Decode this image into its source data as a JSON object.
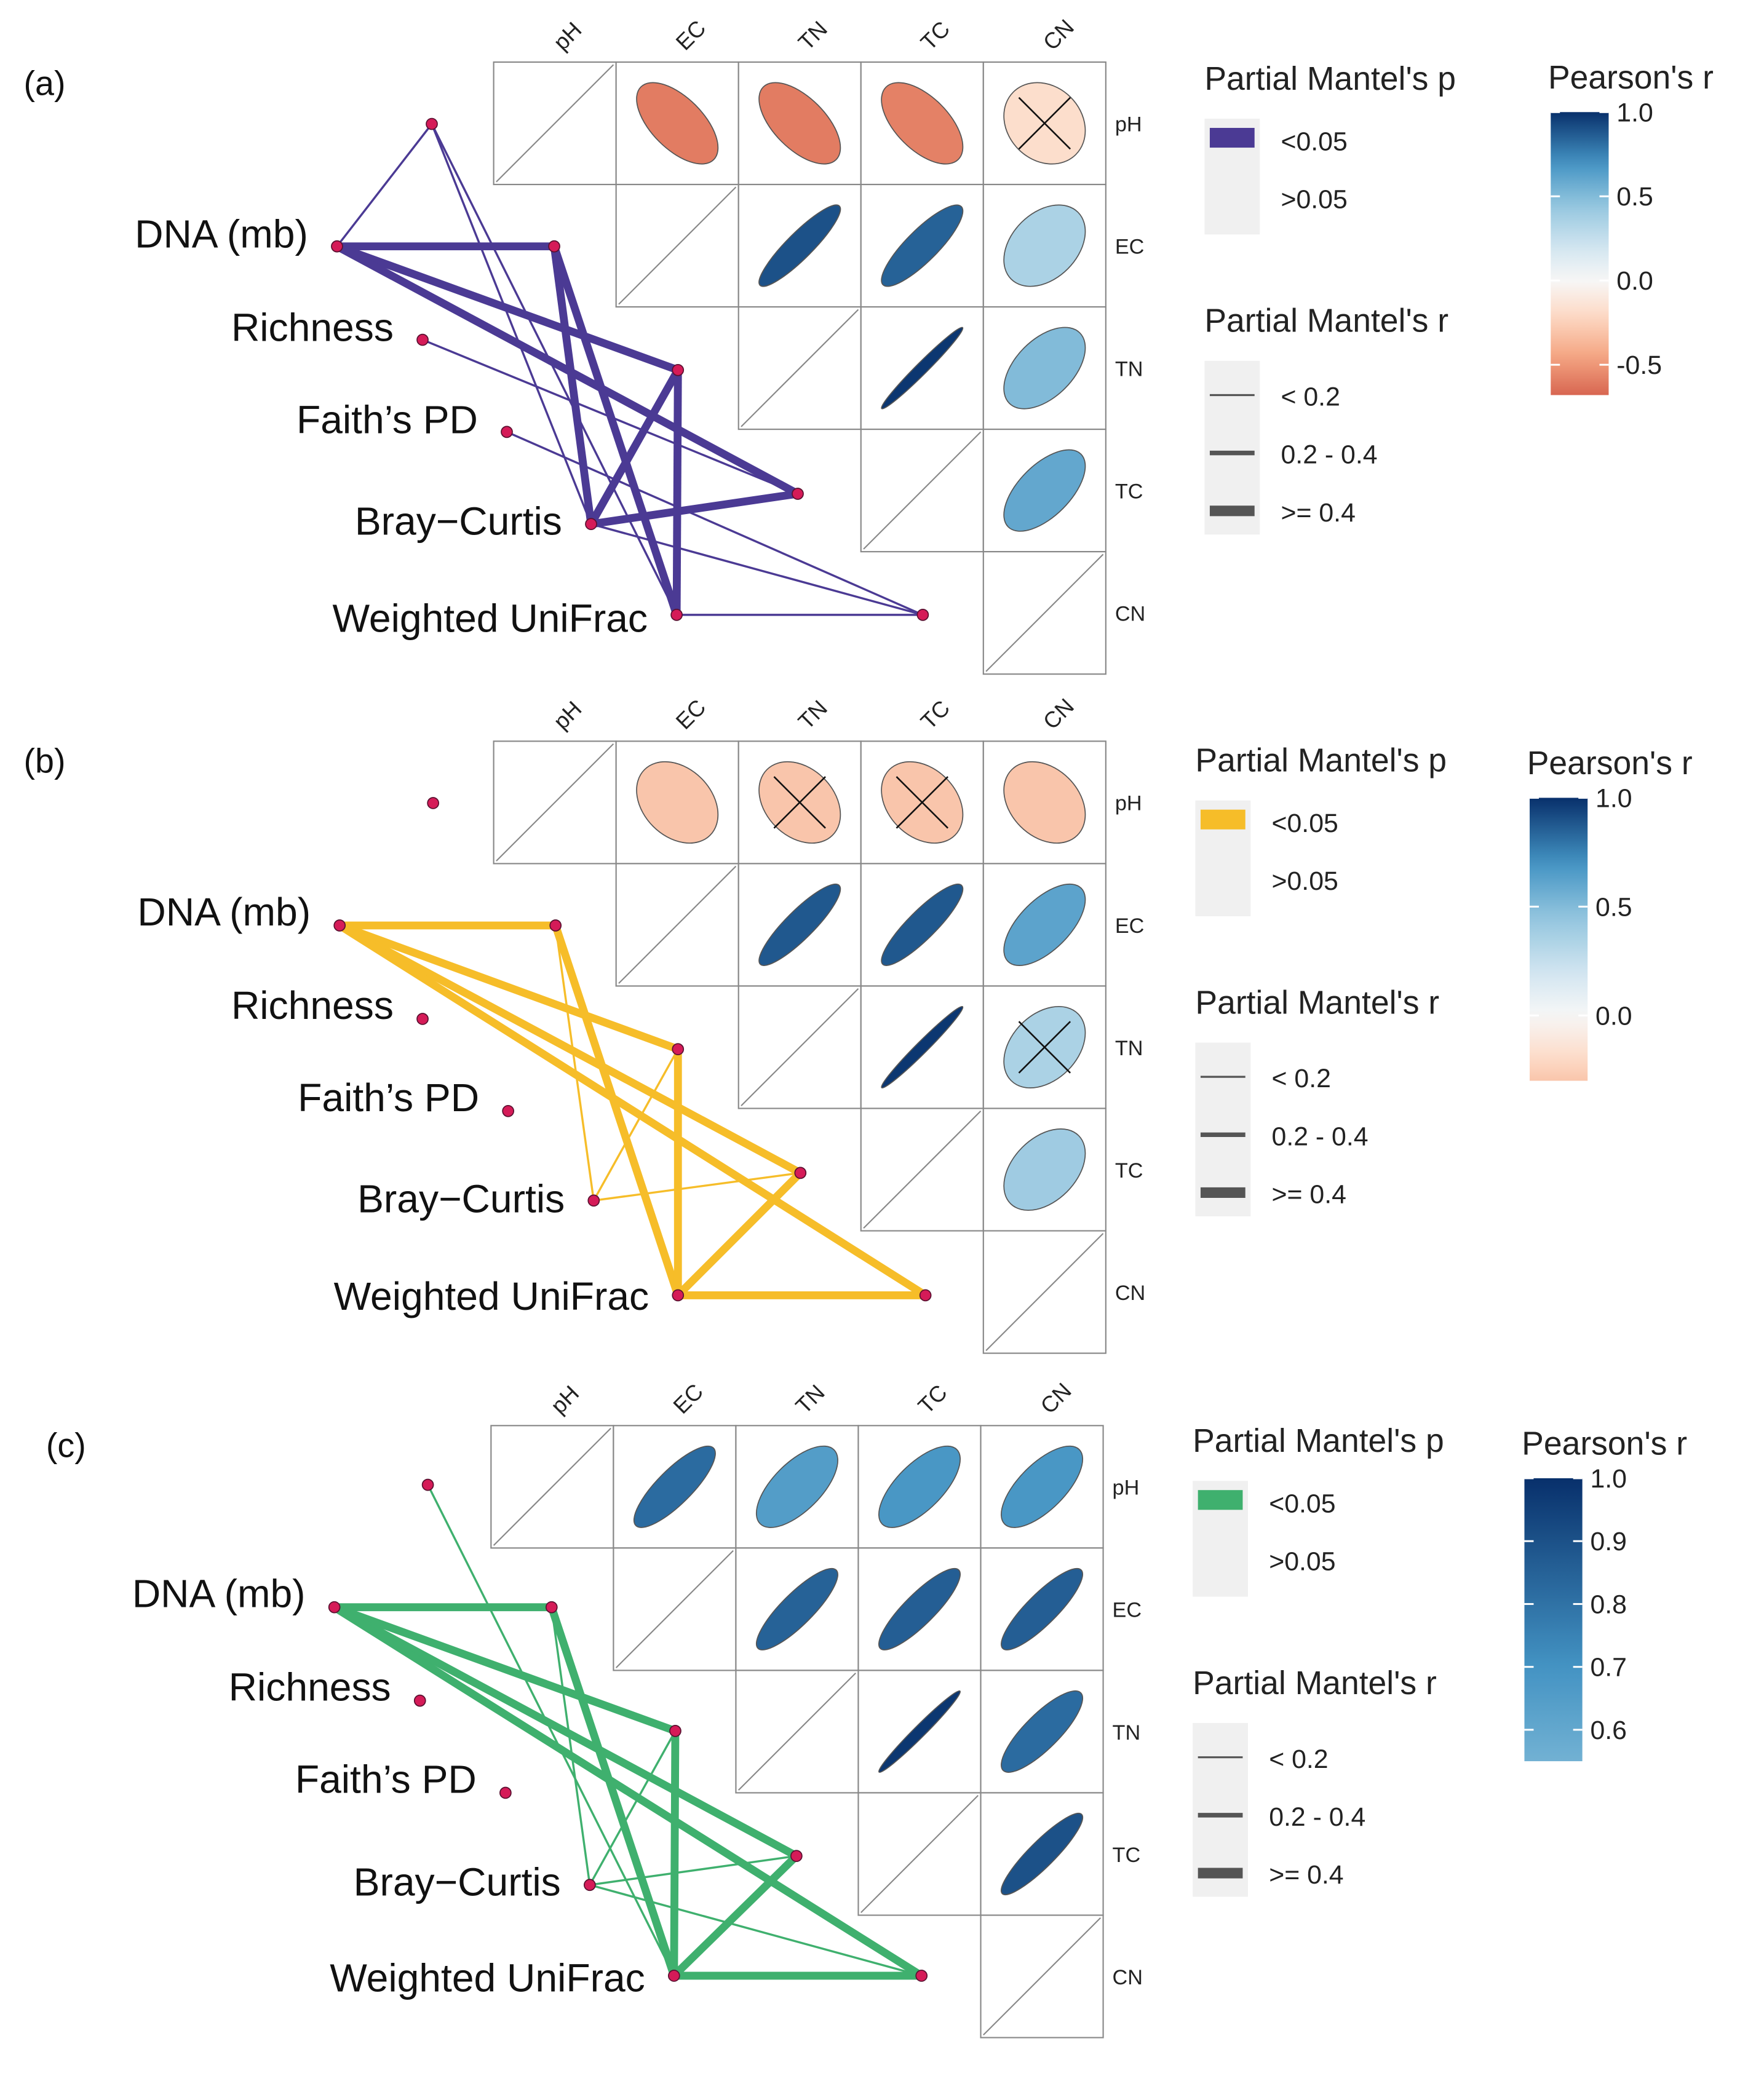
{
  "colors": {
    "edge_a": "#4b3a94",
    "edge_b": "#f6bd29",
    "edge_c": "#3fb06e",
    "node": "#d51b58",
    "node_stroke": "#5a1030",
    "grid": "#888888",
    "legend_bg": "#f0f0f0",
    "legend_line": "#555555"
  },
  "chart_data": [
    {
      "type": "heatmap",
      "panel_label": "(a)",
      "variables": [
        "pH",
        "EC",
        "TN",
        "TC",
        "CN"
      ],
      "row_labels": [
        "DNA (mb)",
        "Richness",
        "Faith’s PD",
        "Bray−Curtis",
        "Weighted UniFrac"
      ],
      "edge_color": "#4b3a94",
      "correlations": [
        {
          "row": "pH",
          "col": "EC",
          "r": -0.6,
          "sig": true
        },
        {
          "row": "pH",
          "col": "TN",
          "r": -0.6,
          "sig": true
        },
        {
          "row": "pH",
          "col": "TC",
          "r": -0.58,
          "sig": true
        },
        {
          "row": "pH",
          "col": "CN",
          "r": -0.18,
          "sig": false
        },
        {
          "row": "EC",
          "col": "TN",
          "r": 0.9,
          "sig": true
        },
        {
          "row": "EC",
          "col": "TC",
          "r": 0.85,
          "sig": true
        },
        {
          "row": "EC",
          "col": "CN",
          "r": 0.35,
          "sig": true
        },
        {
          "row": "TN",
          "col": "TC",
          "r": 0.98,
          "sig": true
        },
        {
          "row": "TN",
          "col": "CN",
          "r": 0.5,
          "sig": true
        },
        {
          "row": "TC",
          "col": "CN",
          "r": 0.6,
          "sig": true
        }
      ],
      "mantel_edges": [
        {
          "from": "pH",
          "to": "DNA (mb)",
          "r_class": "< 0.2",
          "p_class": "<0.05"
        },
        {
          "from": "pH",
          "to": "Bray−Curtis",
          "r_class": "< 0.2",
          "p_class": "<0.05"
        },
        {
          "from": "pH",
          "to": "Weighted UniFrac",
          "r_class": "< 0.2",
          "p_class": "<0.05"
        },
        {
          "from": "EC",
          "to": "DNA (mb)",
          "r_class": ">= 0.4",
          "p_class": "<0.05"
        },
        {
          "from": "EC",
          "to": "Bray−Curtis",
          "r_class": ">= 0.4",
          "p_class": "<0.05"
        },
        {
          "from": "EC",
          "to": "Weighted UniFrac",
          "r_class": ">= 0.4",
          "p_class": "<0.05"
        },
        {
          "from": "TN",
          "to": "DNA (mb)",
          "r_class": ">= 0.4",
          "p_class": "<0.05"
        },
        {
          "from": "TN",
          "to": "Bray−Curtis",
          "r_class": ">= 0.4",
          "p_class": "<0.05"
        },
        {
          "from": "TN",
          "to": "Weighted UniFrac",
          "r_class": ">= 0.4",
          "p_class": "<0.05"
        },
        {
          "from": "TC",
          "to": "DNA (mb)",
          "r_class": ">= 0.4",
          "p_class": "<0.05"
        },
        {
          "from": "TC",
          "to": "Bray−Curtis",
          "r_class": ">= 0.4",
          "p_class": "<0.05"
        },
        {
          "from": "TC",
          "to": "Richness",
          "r_class": "< 0.2",
          "p_class": "<0.05"
        },
        {
          "from": "CN",
          "to": "Faith’s PD",
          "r_class": "< 0.2",
          "p_class": "<0.05"
        },
        {
          "from": "CN",
          "to": "Bray−Curtis",
          "r_class": "< 0.2",
          "p_class": "<0.05"
        },
        {
          "from": "CN",
          "to": "Weighted UniFrac",
          "r_class": "< 0.2",
          "p_class": "<0.05"
        }
      ],
      "legend_p": {
        "title": "Partial Mantel's p",
        "items": [
          "<0.05",
          ">0.05"
        ]
      },
      "legend_r": {
        "title": "Partial Mantel's r",
        "items": [
          "< 0.2",
          "0.2 - 0.4",
          ">= 0.4"
        ]
      },
      "colorbar": {
        "title": "Pearson's r",
        "ticks": [
          "1.0",
          "0.5",
          "0.0",
          "-0.5"
        ],
        "range": [
          -0.68,
          1.0
        ]
      }
    },
    {
      "type": "heatmap",
      "panel_label": "(b)",
      "variables": [
        "pH",
        "EC",
        "TN",
        "TC",
        "CN"
      ],
      "row_labels": [
        "DNA (mb)",
        "Richness",
        "Faith’s PD",
        "Bray−Curtis",
        "Weighted UniFrac"
      ],
      "edge_color": "#f6bd29",
      "correlations": [
        {
          "row": "pH",
          "col": "EC",
          "r": -0.3,
          "sig": true
        },
        {
          "row": "pH",
          "col": "TN",
          "r": -0.3,
          "sig": false
        },
        {
          "row": "pH",
          "col": "TC",
          "r": -0.3,
          "sig": false
        },
        {
          "row": "pH",
          "col": "CN",
          "r": -0.3,
          "sig": true
        },
        {
          "row": "EC",
          "col": "TN",
          "r": 0.88,
          "sig": true
        },
        {
          "row": "EC",
          "col": "TC",
          "r": 0.88,
          "sig": true
        },
        {
          "row": "EC",
          "col": "CN",
          "r": 0.62,
          "sig": true
        },
        {
          "row": "TN",
          "col": "TC",
          "r": 0.98,
          "sig": true
        },
        {
          "row": "TN",
          "col": "CN",
          "r": 0.35,
          "sig": false
        },
        {
          "row": "TC",
          "col": "CN",
          "r": 0.4,
          "sig": true
        }
      ],
      "mantel_edges": [
        {
          "from": "EC",
          "to": "DNA (mb)",
          "r_class": ">= 0.4",
          "p_class": "<0.05"
        },
        {
          "from": "EC",
          "to": "Bray−Curtis",
          "r_class": "< 0.2",
          "p_class": "<0.05"
        },
        {
          "from": "EC",
          "to": "Weighted UniFrac",
          "r_class": ">= 0.4",
          "p_class": "<0.05"
        },
        {
          "from": "TN",
          "to": "DNA (mb)",
          "r_class": ">= 0.4",
          "p_class": "<0.05"
        },
        {
          "from": "TN",
          "to": "Bray−Curtis",
          "r_class": "< 0.2",
          "p_class": "<0.05"
        },
        {
          "from": "TN",
          "to": "Weighted UniFrac",
          "r_class": ">= 0.4",
          "p_class": "<0.05"
        },
        {
          "from": "TC",
          "to": "DNA (mb)",
          "r_class": ">= 0.4",
          "p_class": "<0.05"
        },
        {
          "from": "TC",
          "to": "Bray−Curtis",
          "r_class": "< 0.2",
          "p_class": "<0.05"
        },
        {
          "from": "TC",
          "to": "Weighted UniFrac",
          "r_class": ">= 0.4",
          "p_class": "<0.05"
        },
        {
          "from": "CN",
          "to": "DNA (mb)",
          "r_class": ">= 0.4",
          "p_class": "<0.05"
        },
        {
          "from": "CN",
          "to": "Weighted UniFrac",
          "r_class": ">= 0.4",
          "p_class": "<0.05"
        }
      ],
      "legend_p": {
        "title": "Partial Mantel's p",
        "items": [
          "<0.05",
          ">0.05"
        ]
      },
      "legend_r": {
        "title": "Partial Mantel's r",
        "items": [
          "< 0.2",
          "0.2 - 0.4",
          ">= 0.4"
        ]
      },
      "colorbar": {
        "title": "Pearson's r",
        "ticks": [
          "1.0",
          "0.5",
          "0.0"
        ],
        "range": [
          -0.3,
          1.0
        ]
      }
    },
    {
      "type": "heatmap",
      "panel_label": "(c)",
      "variables": [
        "pH",
        "EC",
        "TN",
        "TC",
        "CN"
      ],
      "row_labels": [
        "DNA (mb)",
        "Richness",
        "Faith’s PD",
        "Bray−Curtis",
        "Weighted UniFrac"
      ],
      "edge_color": "#3fb06e",
      "correlations": [
        {
          "row": "pH",
          "col": "EC",
          "r": 0.82,
          "sig": true
        },
        {
          "row": "pH",
          "col": "TN",
          "r": 0.65,
          "sig": true
        },
        {
          "row": "pH",
          "col": "TC",
          "r": 0.68,
          "sig": true
        },
        {
          "row": "pH",
          "col": "CN",
          "r": 0.68,
          "sig": true
        },
        {
          "row": "EC",
          "col": "TN",
          "r": 0.85,
          "sig": true
        },
        {
          "row": "EC",
          "col": "TC",
          "r": 0.86,
          "sig": true
        },
        {
          "row": "EC",
          "col": "CN",
          "r": 0.86,
          "sig": true
        },
        {
          "row": "TN",
          "col": "TC",
          "r": 0.98,
          "sig": true
        },
        {
          "row": "TN",
          "col": "CN",
          "r": 0.82,
          "sig": true
        },
        {
          "row": "TC",
          "col": "CN",
          "r": 0.9,
          "sig": true
        }
      ],
      "mantel_edges": [
        {
          "from": "pH",
          "to": "Weighted UniFrac",
          "r_class": "< 0.2",
          "p_class": "<0.05"
        },
        {
          "from": "EC",
          "to": "DNA (mb)",
          "r_class": ">= 0.4",
          "p_class": "<0.05"
        },
        {
          "from": "EC",
          "to": "Bray−Curtis",
          "r_class": "< 0.2",
          "p_class": "<0.05"
        },
        {
          "from": "EC",
          "to": "Weighted UniFrac",
          "r_class": ">= 0.4",
          "p_class": "<0.05"
        },
        {
          "from": "TN",
          "to": "DNA (mb)",
          "r_class": ">= 0.4",
          "p_class": "<0.05"
        },
        {
          "from": "TN",
          "to": "Bray−Curtis",
          "r_class": "< 0.2",
          "p_class": "<0.05"
        },
        {
          "from": "TN",
          "to": "Weighted UniFrac",
          "r_class": ">= 0.4",
          "p_class": "<0.05"
        },
        {
          "from": "TC",
          "to": "DNA (mb)",
          "r_class": ">= 0.4",
          "p_class": "<0.05"
        },
        {
          "from": "TC",
          "to": "Bray−Curtis",
          "r_class": "< 0.2",
          "p_class": "<0.05"
        },
        {
          "from": "TC",
          "to": "Weighted UniFrac",
          "r_class": ">= 0.4",
          "p_class": "<0.05"
        },
        {
          "from": "CN",
          "to": "DNA (mb)",
          "r_class": ">= 0.4",
          "p_class": "<0.05"
        },
        {
          "from": "CN",
          "to": "Bray−Curtis",
          "r_class": "< 0.2",
          "p_class": "<0.05"
        },
        {
          "from": "CN",
          "to": "Weighted UniFrac",
          "r_class": ">= 0.4",
          "p_class": "<0.05"
        }
      ],
      "legend_p": {
        "title": "Partial Mantel's p",
        "items": [
          "<0.05",
          ">0.05"
        ]
      },
      "legend_r": {
        "title": "Partial Mantel's r",
        "items": [
          "< 0.2",
          "0.2 - 0.4",
          ">= 0.4"
        ]
      },
      "colorbar": {
        "title": "Pearson's r",
        "ticks": [
          "1.0",
          "0.9",
          "0.8",
          "0.7",
          "0.6"
        ],
        "range": [
          0.55,
          1.0
        ]
      }
    }
  ]
}
